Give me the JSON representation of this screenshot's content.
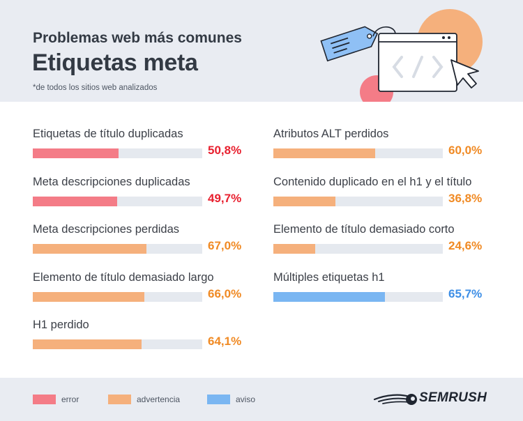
{
  "header": {
    "subtitle": "Problemas web más comunes",
    "title": "Etiquetas meta",
    "note": "*de todos los sitios web analizados"
  },
  "colors": {
    "error": "#f47c87",
    "warning": "#f5b07c",
    "notice": "#7ab6f2",
    "error_text": "#e8202f",
    "warning_text": "#f08a24",
    "notice_text": "#3d8ee6",
    "track": "#e5e9ef"
  },
  "chart_data": {
    "type": "bar",
    "orientation": "horizontal",
    "xlim": [
      0,
      100
    ],
    "unit": "%",
    "items": [
      {
        "label": "Etiquetas de título duplicadas",
        "value": 50.8,
        "display": "50,8%",
        "category": "error",
        "column": 0
      },
      {
        "label": "Meta descripciones duplicadas",
        "value": 49.7,
        "display": "49,7%",
        "category": "error",
        "column": 0
      },
      {
        "label": "Meta descripciones perdidas",
        "value": 67.0,
        "display": "67,0%",
        "category": "warning",
        "column": 0
      },
      {
        "label": "Elemento de título demasiado largo",
        "value": 66.0,
        "display": "66,0%",
        "category": "warning",
        "column": 0
      },
      {
        "label": "H1 perdido",
        "value": 64.1,
        "display": "64,1%",
        "category": "warning",
        "column": 0
      },
      {
        "label": "Atributos ALT perdidos",
        "value": 60.0,
        "display": "60,0%",
        "category": "warning",
        "column": 1
      },
      {
        "label": "Contenido duplicado en el h1 y el título",
        "value": 36.8,
        "display": "36,8%",
        "category": "warning",
        "column": 1
      },
      {
        "label": "Elemento de título demasiado corto",
        "value": 24.6,
        "display": "24,6%",
        "category": "warning",
        "column": 1
      },
      {
        "label": "Múltiples etiquetas h1",
        "value": 65.7,
        "display": "65,7%",
        "category": "notice",
        "column": 1
      }
    ],
    "legend": [
      {
        "key": "error",
        "label": "error"
      },
      {
        "key": "warning",
        "label": "advertencia"
      },
      {
        "key": "notice",
        "label": "aviso"
      }
    ]
  },
  "footer": {
    "brand": "SEMRUSH"
  },
  "icons": {
    "illustration": "code-window-with-tag-icon",
    "brand_logo": "semrush-comet-icon"
  }
}
